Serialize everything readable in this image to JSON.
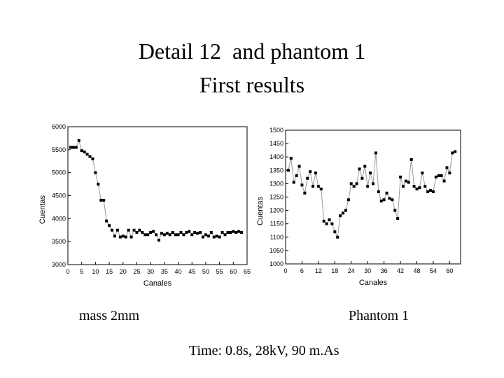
{
  "title": [
    "Detail 12  and phantom 1",
    "First results"
  ],
  "captions": [
    "mass 2mm",
    "Phantom 1",
    "Time: 0.8s, 28kV, 90 m.As"
  ],
  "chart_data": [
    {
      "type": "line",
      "xlabel": "Canales",
      "ylabel": "Cuentas",
      "color": "#999999",
      "marker_color": "#000000",
      "xlim": [
        0,
        65
      ],
      "xticks": [
        0,
        5,
        10,
        15,
        20,
        25,
        30,
        35,
        40,
        45,
        50,
        55,
        60,
        65
      ],
      "ylim": [
        3000,
        6000
      ],
      "yticks": [
        3000,
        3500,
        4000,
        4500,
        5000,
        5500,
        6000
      ],
      "x": [
        1,
        2,
        3,
        4,
        5,
        6,
        7,
        8,
        9,
        10,
        11,
        12,
        13,
        14,
        15,
        16,
        17,
        18,
        19,
        20,
        21,
        22,
        23,
        24,
        25,
        26,
        27,
        28,
        29,
        30,
        31,
        32,
        33,
        34,
        35,
        36,
        37,
        38,
        39,
        40,
        41,
        42,
        43,
        44,
        45,
        46,
        47,
        48,
        49,
        50,
        51,
        52,
        53,
        54,
        55,
        56,
        57,
        58,
        59,
        60,
        61,
        62,
        63
      ],
      "values": [
        5550,
        5550,
        5550,
        5700,
        5480,
        5450,
        5400,
        5350,
        5300,
        5000,
        4750,
        4400,
        4400,
        3950,
        3850,
        3750,
        3620,
        3750,
        3600,
        3620,
        3600,
        3750,
        3600,
        3750,
        3700,
        3750,
        3700,
        3650,
        3650,
        3700,
        3720,
        3650,
        3530,
        3680,
        3650,
        3680,
        3650,
        3700,
        3650,
        3650,
        3700,
        3650,
        3700,
        3720,
        3650,
        3700,
        3680,
        3700,
        3600,
        3650,
        3620,
        3700,
        3600,
        3620,
        3600,
        3700,
        3650,
        3700,
        3700,
        3720,
        3700,
        3720,
        3700
      ]
    },
    {
      "type": "line",
      "xlabel": "Canales",
      "ylabel": "Cuentas",
      "color": "#999999",
      "marker_color": "#000000",
      "xlim": [
        0,
        64
      ],
      "xticks": [
        0,
        6,
        12,
        18,
        24,
        30,
        36,
        42,
        48,
        54,
        60
      ],
      "ylim": [
        1000,
        1500
      ],
      "yticks": [
        1000,
        1050,
        1100,
        1150,
        1200,
        1250,
        1300,
        1350,
        1400,
        1450,
        1500
      ],
      "x": [
        1,
        2,
        3,
        4,
        5,
        6,
        7,
        8,
        9,
        10,
        11,
        12,
        13,
        14,
        15,
        16,
        17,
        18,
        19,
        20,
        21,
        22,
        23,
        24,
        25,
        26,
        27,
        28,
        29,
        30,
        31,
        32,
        33,
        34,
        35,
        36,
        37,
        38,
        39,
        40,
        41,
        42,
        43,
        44,
        45,
        46,
        47,
        48,
        49,
        50,
        51,
        52,
        53,
        54,
        55,
        56,
        57,
        58,
        59,
        60,
        61,
        62
      ],
      "values": [
        1350,
        1395,
        1305,
        1330,
        1365,
        1295,
        1265,
        1320,
        1345,
        1290,
        1340,
        1290,
        1280,
        1160,
        1150,
        1165,
        1150,
        1120,
        1100,
        1180,
        1190,
        1200,
        1240,
        1300,
        1290,
        1300,
        1355,
        1320,
        1365,
        1290,
        1340,
        1300,
        1415,
        1270,
        1235,
        1240,
        1265,
        1245,
        1240,
        1200,
        1170,
        1325,
        1290,
        1310,
        1305,
        1390,
        1290,
        1280,
        1285,
        1340,
        1290,
        1270,
        1275,
        1270,
        1325,
        1330,
        1330,
        1310,
        1360,
        1340,
        1415,
        1420
      ]
    }
  ]
}
